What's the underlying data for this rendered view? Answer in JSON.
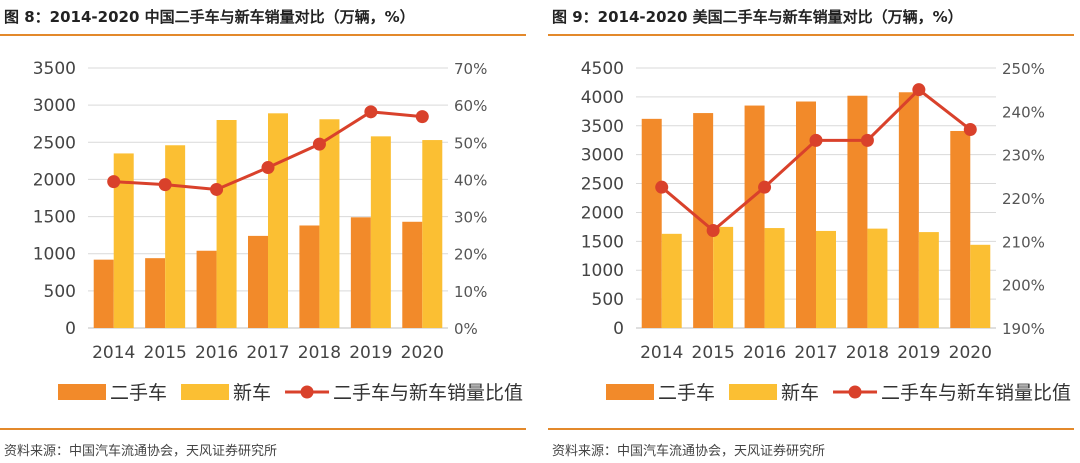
{
  "colors": {
    "used": "#f28a2a",
    "new": "#fbbf33",
    "ratio": "#d9412b",
    "rule": "#e3892b",
    "grid": "#d9d9d9"
  },
  "charts": [
    {
      "title": "图 8：2014-2020 中国二手车与新车销量对比（万辆，%）",
      "source": "资料来源：中国汽车流通协会，天风证券研究所",
      "chart_data": {
        "type": "bar",
        "categories": [
          "2014",
          "2015",
          "2016",
          "2017",
          "2018",
          "2019",
          "2020"
        ],
        "series": [
          {
            "name": "二手车",
            "type": "bar",
            "axis": "left",
            "color": "#f28a2a",
            "values": [
              920,
              940,
              1040,
              1240,
              1380,
              1490,
              1430
            ]
          },
          {
            "name": "新车",
            "type": "bar",
            "axis": "left",
            "color": "#fbbf33",
            "values": [
              2350,
              2460,
              2800,
              2890,
              2810,
              2580,
              2530
            ]
          },
          {
            "name": "二手车与新车销量比值",
            "type": "line",
            "axis": "right",
            "color": "#d9412b",
            "values": [
              39.4,
              38.6,
              37.3,
              43.2,
              49.5,
              58.2,
              56.9
            ]
          }
        ],
        "yleft": {
          "min": 0,
          "max": 3500,
          "step": 500,
          "ticks": [
            "0",
            "500",
            "1000",
            "1500",
            "2000",
            "2500",
            "3000",
            "3500"
          ]
        },
        "yright": {
          "min": 0,
          "max": 70,
          "step": 10,
          "ticks": [
            "0%",
            "10%",
            "20%",
            "30%",
            "40%",
            "50%",
            "60%",
            "70%"
          ]
        },
        "grid": true,
        "legend": "bottom"
      }
    },
    {
      "title": "图 9：2014-2020 美国二手车与新车销量对比（万辆，%）",
      "source": "资料来源：中国汽车流通协会，天风证券研究所",
      "chart_data": {
        "type": "bar",
        "categories": [
          "2014",
          "2015",
          "2016",
          "2017",
          "2018",
          "2019",
          "2020"
        ],
        "series": [
          {
            "name": "二手车",
            "type": "bar",
            "axis": "left",
            "color": "#f28a2a",
            "values": [
              3620,
              3720,
              3850,
              3920,
              4020,
              4080,
              3410
            ]
          },
          {
            "name": "新车",
            "type": "bar",
            "axis": "left",
            "color": "#fbbf33",
            "values": [
              1630,
              1750,
              1730,
              1680,
              1720,
              1660,
              1440
            ]
          },
          {
            "name": "二手车与新车销量比值",
            "type": "line",
            "axis": "right",
            "color": "#d9412b",
            "values": [
              222.5,
              212.5,
              222.5,
              233.3,
              233.3,
              245.0,
              235.8
            ]
          }
        ],
        "yleft": {
          "min": 0,
          "max": 4500,
          "step": 500,
          "ticks": [
            "0",
            "500",
            "1000",
            "1500",
            "2000",
            "2500",
            "3000",
            "3500",
            "4000",
            "4500"
          ]
        },
        "yright": {
          "min": 190,
          "max": 250,
          "step": 10,
          "ticks": [
            "190%",
            "200%",
            "210%",
            "220%",
            "230%",
            "240%",
            "250%"
          ]
        },
        "grid": true,
        "legend": "bottom"
      }
    }
  ]
}
